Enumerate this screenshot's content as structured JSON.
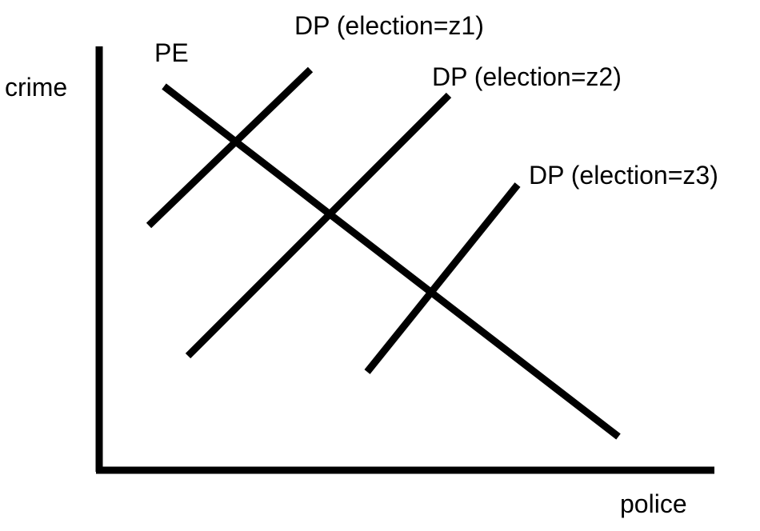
{
  "diagram": {
    "axes": {
      "y_label": "crime",
      "x_label": "police"
    },
    "lines": {
      "pe": {
        "label": "PE",
        "slope": "downward"
      },
      "dp_z1": {
        "label": "DP (election=z1)",
        "slope": "upward"
      },
      "dp_z2": {
        "label": "DP (election=z2)",
        "slope": "upward"
      },
      "dp_z3": {
        "label": "DP (election=z3)",
        "slope": "upward"
      }
    },
    "colors": {
      "line": "#000000",
      "background": "#ffffff"
    }
  }
}
